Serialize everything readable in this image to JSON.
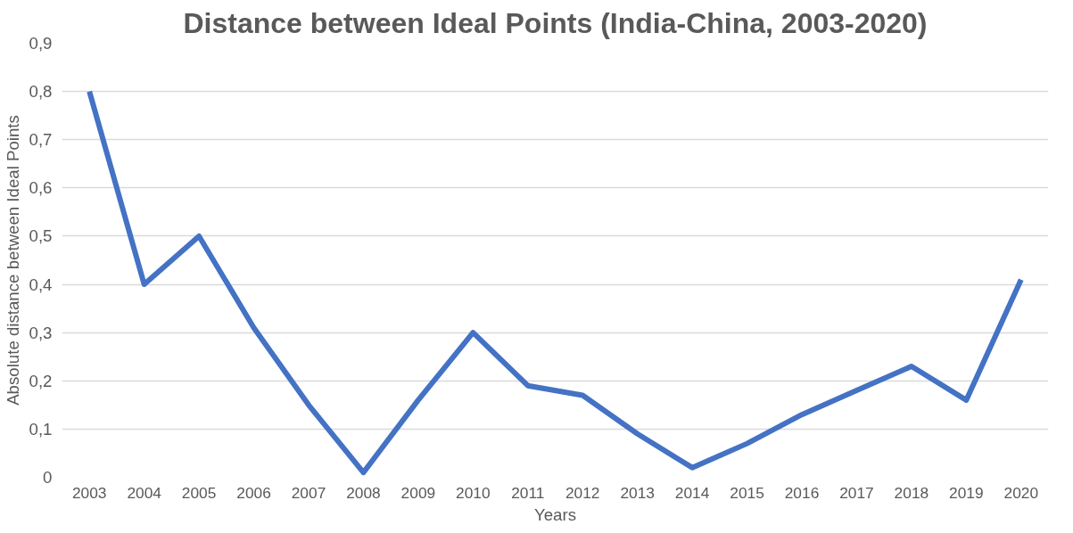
{
  "chart_data": {
    "type": "line",
    "title": "Distance between Ideal Points (India-China, 2003-2020)",
    "xlabel": "Years",
    "ylabel": "Absolute distance between Ideal Points",
    "categories": [
      "2003",
      "2004",
      "2005",
      "2006",
      "2007",
      "2008",
      "2009",
      "2010",
      "2011",
      "2012",
      "2013",
      "2014",
      "2015",
      "2016",
      "2017",
      "2018",
      "2019",
      "2020"
    ],
    "series": [
      {
        "color": "#4472c4",
        "values": [
          0.8,
          0.4,
          0.5,
          0.31,
          0.15,
          0.01,
          0.16,
          0.3,
          0.19,
          0.17,
          0.09,
          0.02,
          0.07,
          0.13,
          0.18,
          0.23,
          0.16,
          0.41
        ]
      }
    ],
    "ylim": [
      0,
      0.9
    ],
    "yticks": [
      0,
      {
        "value": 0.1,
        "label": "0,1"
      },
      {
        "value": 0.2,
        "label": "0,2"
      },
      {
        "value": 0.3,
        "label": "0,3"
      },
      {
        "value": 0.4,
        "label": "0,4"
      },
      {
        "value": 0.5,
        "label": "0,5"
      },
      {
        "value": 0.6,
        "label": "0,6"
      },
      {
        "value": 0.7,
        "label": "0,7"
      },
      {
        "value": 0.8,
        "label": "0,8"
      },
      {
        "value": 0.9,
        "label": "0,9"
      }
    ],
    "grid": "y",
    "marker": "none",
    "line_style": "solid"
  }
}
